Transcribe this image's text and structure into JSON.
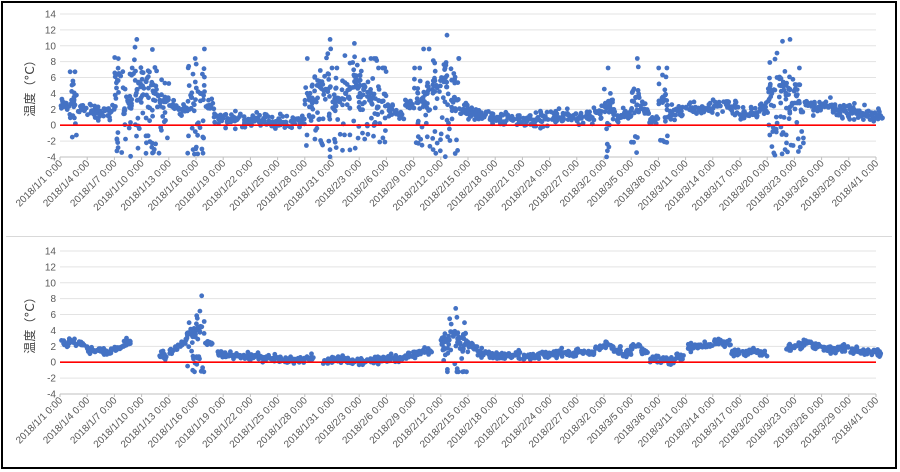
{
  "chart_data": [
    {
      "type": "scatter",
      "ylabel": "温度（°C）",
      "ylim": [
        -4,
        14
      ],
      "yticks": [
        -4,
        -2,
        0,
        2,
        4,
        6,
        8,
        10,
        12,
        14
      ],
      "xlim": [
        "2018/1/1 0:00",
        "2018/4/1 0:00"
      ],
      "xtick_labels": [
        "2018/1/1 0:00",
        "2018/1/4 0:00",
        "2018/1/7 0:00",
        "2018/1/10 0:00",
        "2018/1/13 0:00",
        "2018/1/16 0:00",
        "2018/1/19 0:00",
        "2018/1/22 0:00",
        "2018/1/25 0:00",
        "2018/1/28 0:00",
        "2018/1/31 0:00",
        "2018/2/3 0:00",
        "2018/2/6 0:00",
        "2018/2/9 0:00",
        "2018/2/12 0:00",
        "2018/2/15 0:00",
        "2018/2/18 0:00",
        "2018/2/21 0:00",
        "2018/2/24 0:00",
        "2018/2/27 0:00",
        "2018/3/2 0:00",
        "2018/3/5 0:00",
        "2018/3/8 0:00",
        "2018/3/11 0:00",
        "2018/3/14 0:00",
        "2018/3/17 0:00",
        "2018/3/20 0:00",
        "2018/3/23 0:00",
        "2018/3/26 0:00",
        "2018/3/29 0:00",
        "2018/4/1 0:00"
      ],
      "grid": true,
      "reference_line": {
        "y": 0,
        "color": "#ff0000"
      },
      "marker_color": "#4472c4",
      "series": [
        {
          "x": [
            "2018/1/1",
            "2018/1/2",
            "2018/1/3",
            "2018/1/4",
            "2018/1/5",
            "2018/1/6",
            "2018/1/7",
            "2018/1/8",
            "2018/1/9",
            "2018/1/10",
            "2018/1/11",
            "2018/1/12",
            "2018/1/13",
            "2018/1/14",
            "2018/1/15",
            "2018/1/16",
            "2018/1/17",
            "2018/1/18",
            "2018/1/19",
            "2018/1/20",
            "2018/1/21",
            "2018/1/22",
            "2018/1/23",
            "2018/1/24",
            "2018/1/25",
            "2018/1/26",
            "2018/1/27",
            "2018/1/28",
            "2018/1/29",
            "2018/1/30",
            "2018/1/31",
            "2018/2/1",
            "2018/2/2",
            "2018/2/3",
            "2018/2/4",
            "2018/2/5",
            "2018/2/6",
            "2018/2/7",
            "2018/2/8",
            "2018/2/9",
            "2018/2/10",
            "2018/2/11",
            "2018/2/12",
            "2018/2/13",
            "2018/2/14",
            "2018/2/15",
            "2018/2/16",
            "2018/2/17",
            "2018/2/18",
            "2018/2/19",
            "2018/2/20",
            "2018/2/21",
            "2018/2/22",
            "2018/2/23",
            "2018/2/24",
            "2018/2/25",
            "2018/2/26",
            "2018/2/27",
            "2018/2/28",
            "2018/3/1",
            "2018/3/2",
            "2018/3/3",
            "2018/3/4",
            "2018/3/5",
            "2018/3/6",
            "2018/3/7",
            "2018/3/8",
            "2018/3/9",
            "2018/3/10",
            "2018/3/11",
            "2018/3/12",
            "2018/3/13",
            "2018/3/14",
            "2018/3/15",
            "2018/3/16",
            "2018/3/17",
            "2018/3/18",
            "2018/3/19",
            "2018/3/20",
            "2018/3/21",
            "2018/3/22",
            "2018/3/23",
            "2018/3/24",
            "2018/3/25",
            "2018/3/26",
            "2018/3/27",
            "2018/3/28",
            "2018/3/29",
            "2018/3/30",
            "2018/3/31",
            "2018/4/1"
          ],
          "y": [
            2.4,
            2.8,
            2.1,
            1.8,
            1.5,
            1.6,
            6.5,
            3.0,
            4.5,
            5.5,
            4.0,
            3.2,
            2.5,
            2.0,
            3.5,
            4.0,
            2.5,
            0.8,
            0.6,
            0.7,
            0.5,
            0.9,
            0.6,
            0.4,
            0.3,
            0.5,
            0.4,
            3.5,
            5.0,
            4.5,
            3.0,
            4.0,
            5.5,
            4.5,
            3.5,
            3.0,
            2.0,
            1.5,
            2.5,
            3.0,
            4.0,
            5.0,
            6.0,
            3.5,
            2.0,
            1.5,
            1.2,
            1.0,
            0.9,
            1.0,
            0.8,
            0.9,
            0.7,
            0.8,
            1.0,
            1.2,
            1.0,
            0.9,
            1.1,
            1.5,
            3.0,
            1.2,
            1.4,
            3.5,
            2.0,
            0.6,
            3.0,
            1.5,
            1.8,
            2.0,
            1.9,
            2.2,
            2.4,
            2.6,
            2.3,
            1.2,
            1.5,
            2.0,
            4.0,
            5.0,
            4.5,
            3.0,
            2.5,
            2.2,
            2.4,
            2.0,
            1.8,
            1.7,
            1.5,
            1.3,
            1.2
          ]
        }
      ]
    },
    {
      "type": "scatter",
      "ylabel": "温度（°C）",
      "ylim": [
        -4,
        14
      ],
      "yticks": [
        -4,
        -2,
        0,
        2,
        4,
        6,
        8,
        10,
        12,
        14
      ],
      "xlim": [
        "2018/1/1 0:00",
        "2018/4/1 0:00"
      ],
      "xtick_labels": [
        "2018/1/1 0:00",
        "2018/1/4 0:00",
        "2018/1/7 0:00",
        "2018/1/10 0:00",
        "2018/1/13 0:00",
        "2018/1/16 0:00",
        "2018/1/19 0:00",
        "2018/1/22 0:00",
        "2018/1/25 0:00",
        "2018/1/28 0:00",
        "2018/1/31 0:00",
        "2018/2/3 0:00",
        "2018/2/6 0:00",
        "2018/2/9 0:00",
        "2018/2/12 0:00",
        "2018/2/15 0:00",
        "2018/2/18 0:00",
        "2018/2/21 0:00",
        "2018/2/24 0:00",
        "2018/2/27 0:00",
        "2018/3/2 0:00",
        "2018/3/5 0:00",
        "2018/3/8 0:00",
        "2018/3/11 0:00",
        "2018/3/14 0:00",
        "2018/3/17 0:00",
        "2018/3/20 0:00",
        "2018/3/23 0:00",
        "2018/3/26 0:00",
        "2018/3/29 0:00",
        "2018/4/1 0:00"
      ],
      "grid": true,
      "reference_line": {
        "y": 0,
        "color": "#ff0000"
      },
      "marker_color": "#4472c4",
      "series": [
        {
          "x": [
            "2018/1/1",
            "2018/1/2",
            "2018/1/3",
            "2018/1/4",
            "2018/1/5",
            "2018/1/6",
            "2018/1/7",
            "2018/1/8",
            "2018/1/12",
            "2018/1/13",
            "2018/1/14",
            "2018/1/15",
            "2018/1/16",
            "2018/1/17",
            "2018/1/18",
            "2018/1/19",
            "2018/1/20",
            "2018/1/21",
            "2018/1/22",
            "2018/1/23",
            "2018/1/24",
            "2018/1/25",
            "2018/1/26",
            "2018/1/27",
            "2018/1/28",
            "2018/1/30",
            "2018/1/31",
            "2018/2/1",
            "2018/2/2",
            "2018/2/3",
            "2018/2/4",
            "2018/2/5",
            "2018/2/6",
            "2018/2/7",
            "2018/2/8",
            "2018/2/9",
            "2018/2/10",
            "2018/2/12",
            "2018/2/13",
            "2018/2/14",
            "2018/2/15",
            "2018/2/16",
            "2018/2/17",
            "2018/2/18",
            "2018/2/19",
            "2018/2/20",
            "2018/2/21",
            "2018/2/22",
            "2018/2/23",
            "2018/2/24",
            "2018/2/25",
            "2018/2/26",
            "2018/2/27",
            "2018/2/28",
            "2018/3/1",
            "2018/3/2",
            "2018/3/3",
            "2018/3/4",
            "2018/3/5",
            "2018/3/6",
            "2018/3/7",
            "2018/3/8",
            "2018/3/9",
            "2018/3/10",
            "2018/3/11",
            "2018/3/12",
            "2018/3/13",
            "2018/3/14",
            "2018/3/15",
            "2018/3/16",
            "2018/3/17",
            "2018/3/18",
            "2018/3/19",
            "2018/3/22",
            "2018/3/23",
            "2018/3/24",
            "2018/3/25",
            "2018/3/26",
            "2018/3/27",
            "2018/3/28",
            "2018/3/29",
            "2018/3/30",
            "2018/3/31",
            "2018/4/1"
          ],
          "y": [
            2.2,
            2.5,
            2.3,
            1.6,
            1.4,
            1.3,
            1.8,
            2.5,
            1.0,
            1.5,
            2.5,
            3.5,
            4.5,
            2.5,
            1.0,
            0.9,
            0.8,
            0.7,
            0.8,
            0.6,
            0.5,
            0.3,
            0.2,
            0.3,
            0.4,
            0.1,
            0.3,
            0.2,
            0.1,
            0.0,
            0.2,
            0.3,
            0.5,
            0.6,
            0.8,
            1.0,
            1.3,
            2.8,
            3.5,
            3.0,
            2.0,
            1.2,
            1.0,
            0.9,
            0.8,
            0.9,
            0.7,
            0.8,
            1.0,
            1.1,
            1.2,
            1.0,
            1.3,
            1.2,
            1.8,
            2.2,
            1.5,
            1.3,
            2.0,
            1.2,
            0.4,
            0.3,
            0.2,
            0.6,
            1.8,
            2.1,
            2.2,
            2.6,
            2.4,
            1.2,
            1.1,
            1.4,
            1.2,
            1.9,
            2.2,
            2.5,
            2.0,
            1.7,
            1.6,
            1.8,
            1.5,
            1.3,
            1.2,
            1.1
          ]
        }
      ]
    }
  ]
}
